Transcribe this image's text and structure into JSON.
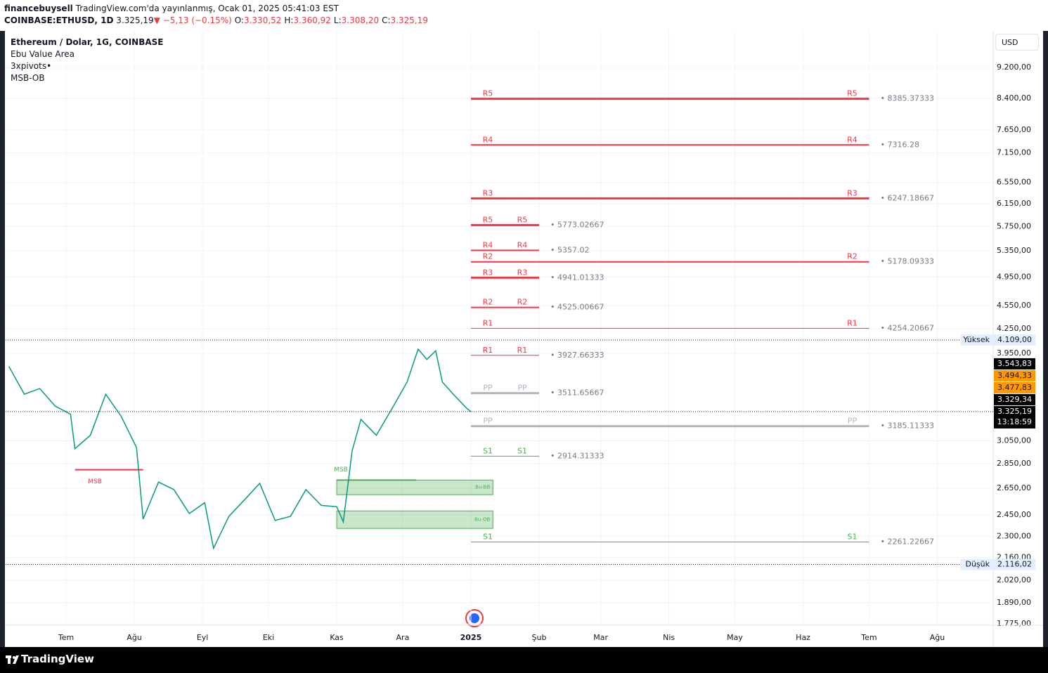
{
  "header": {
    "user": "financebuysell",
    "published": "TradingView.com'da yayınlanmış, Ocak 01, 2025 05:41:03 EST",
    "symbol": "COINBASE:ETHUSD, 1D",
    "last": "3.325,19",
    "change": "▼ −5,13 (−0.15%)",
    "ohlc": [
      {
        "key": "O:",
        "value": "3.330,52"
      },
      {
        "key": "H:",
        "value": "3.360,92"
      },
      {
        "key": "L:",
        "value": "3.308,20"
      },
      {
        "key": "C:",
        "value": "3.325,19"
      }
    ]
  },
  "footer": {
    "brand": "TradingView"
  },
  "chart_data": {
    "type": "line",
    "scale": "log",
    "grid": true,
    "currency": "USD",
    "legend": [
      "Ethereum / Dolar, 1G, COINBASE",
      "Ebu Value Area",
      "3xpivots•",
      "MSB-OB"
    ],
    "ylim": [
      1768,
      10250
    ],
    "yticks": [
      {
        "value": 9200,
        "label": "9.200,00"
      },
      {
        "value": 8400,
        "label": "8.400,00"
      },
      {
        "value": 7650,
        "label": "7.650,00"
      },
      {
        "value": 7150,
        "label": "7.150,00"
      },
      {
        "value": 6550,
        "label": "6.550,00"
      },
      {
        "value": 6150,
        "label": "6.150,00"
      },
      {
        "value": 5750,
        "label": "5.750,00"
      },
      {
        "value": 5350,
        "label": "5.350,00"
      },
      {
        "value": 4950,
        "label": "4.950,00"
      },
      {
        "value": 4550,
        "label": "4.550,00"
      },
      {
        "value": 4250,
        "label": "4.250,00"
      },
      {
        "value": 3950,
        "label": "3.950,00"
      },
      {
        "value": 3050,
        "label": "3.050,00"
      },
      {
        "value": 2850,
        "label": "2.850,00"
      },
      {
        "value": 2650,
        "label": "2.650,00"
      },
      {
        "value": 2450,
        "label": "2.450,00"
      },
      {
        "value": 2300,
        "label": "2.300,00"
      },
      {
        "value": 2160,
        "label": "2.160,00"
      },
      {
        "value": 2020,
        "label": "2.020,00"
      },
      {
        "value": 1890,
        "label": "1.890,00"
      },
      {
        "value": 1775,
        "label": "1.775,00"
      }
    ],
    "xlim": [
      -211.5,
      237.4
    ],
    "xticks": [
      {
        "value": -184,
        "label": "Tem"
      },
      {
        "value": -153,
        "label": "Ağu"
      },
      {
        "value": -122,
        "label": "Eyl"
      },
      {
        "value": -92,
        "label": "Eki"
      },
      {
        "value": -61,
        "label": "Kas"
      },
      {
        "value": -31,
        "label": "Ara"
      },
      {
        "value": 0,
        "label": "2025"
      },
      {
        "value": 31,
        "label": "Şub"
      },
      {
        "value": 59,
        "label": "Mar"
      },
      {
        "value": 90,
        "label": "Nis"
      },
      {
        "value": 120,
        "label": "May"
      },
      {
        "value": 151,
        "label": "Haz"
      },
      {
        "value": 181,
        "label": "Tem"
      },
      {
        "value": 212,
        "label": "Ağu"
      }
    ],
    "color": "#089981",
    "x": [
      -210,
      -203,
      -196,
      -189,
      -182,
      -180,
      -173,
      -166,
      -159,
      -152,
      -149,
      -142,
      -135,
      -128,
      -121,
      -117,
      -110,
      -103,
      -96,
      -89,
      -82,
      -75,
      -68,
      -61,
      -58,
      -54,
      -50,
      -43,
      -36,
      -29,
      -24,
      -20,
      -16,
      -13,
      -8,
      -2,
      0
    ],
    "values": [
      3800,
      3500,
      3560,
      3380,
      3300,
      2980,
      3100,
      3500,
      3280,
      2990,
      2420,
      2700,
      2640,
      2460,
      2540,
      2220,
      2440,
      2560,
      2690,
      2410,
      2440,
      2640,
      2520,
      2510,
      2400,
      2960,
      3250,
      3100,
      3350,
      3630,
      4000,
      3880,
      3980,
      3630,
      3500,
      3360,
      3325
    ],
    "pivots": [
      {
        "period": [
          0,
          31
        ],
        "levels": [
          {
            "name": "R5",
            "value": 5773.02667,
            "label": "• 5773.02667",
            "color": "#f23645",
            "width": 3
          },
          {
            "name": "R4",
            "value": 5357.02,
            "label": "• 5357.02",
            "color": "#f23645",
            "width": 2
          },
          {
            "name": "R3",
            "value": 4941.01333,
            "label": "• 4941.01333",
            "color": "#f23645",
            "width": 3
          },
          {
            "name": "R2",
            "value": 4525.00667,
            "label": "• 4525.00667",
            "color": "#f23645",
            "width": 2
          },
          {
            "name": "R1",
            "value": 3927.66333,
            "label": "• 3927.66333",
            "color": "#f23645",
            "width": 1
          },
          {
            "name": "PP",
            "value": 3511.65667,
            "label": "• 3511.65667",
            "color": "#b2b5be",
            "width": 3
          },
          {
            "name": "S1",
            "value": 2914.31333,
            "label": "• 2914.31333",
            "color": "#4caf50",
            "width": 1
          }
        ]
      },
      {
        "period": [
          0,
          181
        ],
        "levels": [
          {
            "name": "R5",
            "value": 8385.37333,
            "label": "• 8385.37333",
            "color": "#f23645",
            "width": 3
          },
          {
            "name": "R4",
            "value": 7316.28,
            "label": "• 7316.28",
            "color": "#f23645",
            "width": 2
          },
          {
            "name": "R3",
            "value": 6247.18667,
            "label": "• 6247.18667",
            "color": "#f23645",
            "width": 3
          },
          {
            "name": "R2",
            "value": 5178.09333,
            "label": "• 5178.09333",
            "color": "#f23645",
            "width": 2
          },
          {
            "name": "R1",
            "value": 4254.20667,
            "label": "• 4254.20667",
            "color": "#f23645",
            "width": 1
          },
          {
            "name": "PP",
            "value": 3185.11333,
            "label": "• 3185.11333",
            "color": "#b2b5be",
            "width": 3
          },
          {
            "name": "S1",
            "value": 2261.22667,
            "label": "• 2261.22667",
            "color": "#4caf50",
            "width": 1
          }
        ]
      }
    ],
    "zones": [
      {
        "label": "Bu-BB",
        "top": 2716,
        "bottom": 2601,
        "start": -61,
        "end": 10
      },
      {
        "label": "Bu-OB",
        "top": 2479,
        "bottom": 2354,
        "start": -61,
        "end": 10
      }
    ],
    "msb": [
      {
        "label": "MSB",
        "value": 2800,
        "start": -180,
        "end": -149,
        "color": "#f23645"
      },
      {
        "label": "MSB",
        "value": 2716,
        "start": -61,
        "end": -25,
        "color": "#4caf50"
      }
    ],
    "high": {
      "title": "Yüksek",
      "value": 4109,
      "label": "4.109,00"
    },
    "low": {
      "title": "Düşük",
      "value": 2116.02,
      "label": "2.116,02"
    },
    "price_labels": [
      {
        "value": 3543.83,
        "label": "3.543,83",
        "color": "#000000"
      },
      {
        "value": 3494.33,
        "label": "3.494,33",
        "color": "#ff9800"
      },
      {
        "value": 3477.83,
        "label": "3.477,83",
        "color": "#ff9800"
      },
      {
        "value": 3329.34,
        "label": "3.329,34",
        "color": "#000000"
      }
    ],
    "current": {
      "value": 3325.19,
      "label": "3.325,19",
      "timer": "13:18:59"
    }
  }
}
